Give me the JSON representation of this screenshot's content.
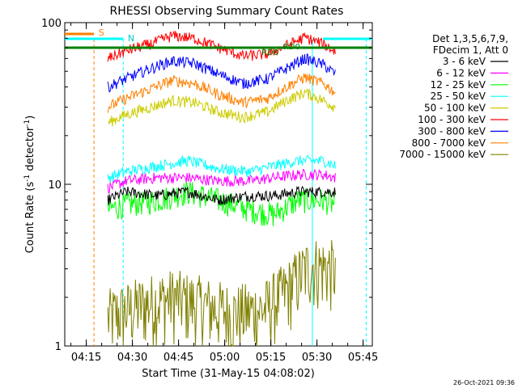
{
  "chart_data": {
    "type": "line",
    "title": "RHESSI Observing Summary Count Rates",
    "xlabel": "Start Time (31-May-15 04:08:02)",
    "ylabel_main": "Count Rate (s",
    "ylabel_sup": "-1",
    "ylabel_tail": " detector",
    "ylabel_end": ")",
    "y_scale": "log",
    "ylim": [
      1,
      100
    ],
    "y_ticks": [
      {
        "value": 1,
        "label": "1"
      },
      {
        "value": 10,
        "label": "10"
      },
      {
        "value": 100,
        "label": "100"
      }
    ],
    "xlim_minutes": [
      0,
      100
    ],
    "x_ticks": [
      {
        "minutes": 7,
        "label": "04:15"
      },
      {
        "minutes": 22,
        "label": "04:30"
      },
      {
        "minutes": 37,
        "label": "04:45"
      },
      {
        "minutes": 52,
        "label": "05:00"
      },
      {
        "minutes": 67,
        "label": "05:15"
      },
      {
        "minutes": 82,
        "label": "05:30"
      },
      {
        "minutes": 97,
        "label": "05:45"
      }
    ],
    "legend_header": [
      "Det 1,3,5,6,7,9,",
      "FDecim 1, Att 0"
    ],
    "timestamp": "26-Oct-2021 09:36",
    "series": [
      {
        "name": "3 - 6 keV",
        "color": "#000000",
        "x": [
          14,
          20,
          30,
          40,
          50,
          60,
          68,
          76,
          84,
          88
        ],
        "values": [
          8,
          9,
          8.5,
          9,
          8,
          8.5,
          8.5,
          9,
          9,
          9
        ]
      },
      {
        "name": "6 - 12 keV",
        "color": "#ff00ff",
        "x": [
          14,
          20,
          30,
          40,
          50,
          60,
          68,
          76,
          84,
          88
        ],
        "values": [
          9.5,
          10.5,
          11,
          11,
          10.5,
          10.5,
          11,
          11.5,
          11.5,
          11
        ]
      },
      {
        "name": "12 - 25 keV",
        "color": "#00ff00",
        "x": [
          14,
          20,
          30,
          40,
          50,
          60,
          68,
          76,
          84,
          88
        ],
        "values": [
          7,
          7.5,
          8,
          9,
          8,
          7,
          6.5,
          8,
          8,
          7.5
        ]
      },
      {
        "name": "25 - 50 keV",
        "color": "#00ffff",
        "x": [
          14,
          20,
          30,
          40,
          50,
          60,
          68,
          76,
          84,
          88
        ],
        "values": [
          11,
          12,
          13,
          14,
          12.5,
          12,
          13,
          14,
          14,
          13
        ]
      },
      {
        "name": "50 - 100 keV",
        "color": "#cccc00",
        "x": [
          14,
          20,
          28,
          35,
          42,
          50,
          58,
          66,
          72,
          78,
          84,
          88
        ],
        "values": [
          24,
          27,
          30,
          33,
          32,
          28,
          26,
          28,
          33,
          37,
          33,
          30
        ]
      },
      {
        "name": "100 - 300 keV",
        "color": "#ff0000",
        "x": [
          14,
          20,
          28,
          35,
          42,
          50,
          58,
          66,
          72,
          78,
          84,
          88
        ],
        "values": [
          60,
          67,
          74,
          83,
          80,
          70,
          62,
          64,
          72,
          81,
          74,
          66
        ]
      },
      {
        "name": "300 - 800 keV",
        "color": "#0000ff",
        "x": [
          14,
          20,
          28,
          35,
          42,
          50,
          58,
          66,
          72,
          78,
          84,
          88
        ],
        "values": [
          40,
          45,
          52,
          58,
          56,
          48,
          42,
          45,
          52,
          60,
          55,
          48
        ]
      },
      {
        "name": "800 - 7000 keV",
        "color": "#ff8000",
        "x": [
          14,
          20,
          28,
          35,
          42,
          50,
          58,
          66,
          72,
          78,
          84,
          88
        ],
        "values": [
          30,
          34,
          39,
          44,
          42,
          36,
          32,
          34,
          40,
          46,
          42,
          37
        ]
      },
      {
        "name": "7000 - 15000 keV",
        "color": "#808000",
        "x": [
          14,
          25,
          35,
          45,
          55,
          65,
          72,
          80,
          88
        ],
        "values": [
          1.5,
          1.8,
          2.0,
          1.8,
          1.6,
          1.7,
          2.2,
          3.2,
          3.0
        ]
      }
    ],
    "annotations": [
      {
        "label": "S",
        "color": "#ff8000"
      },
      {
        "label": "N",
        "color": "#00ffff"
      },
      {
        "label": "RD0",
        "color": "#008000"
      },
      {
        "label": "RD0",
        "color": "#008000"
      }
    ]
  }
}
